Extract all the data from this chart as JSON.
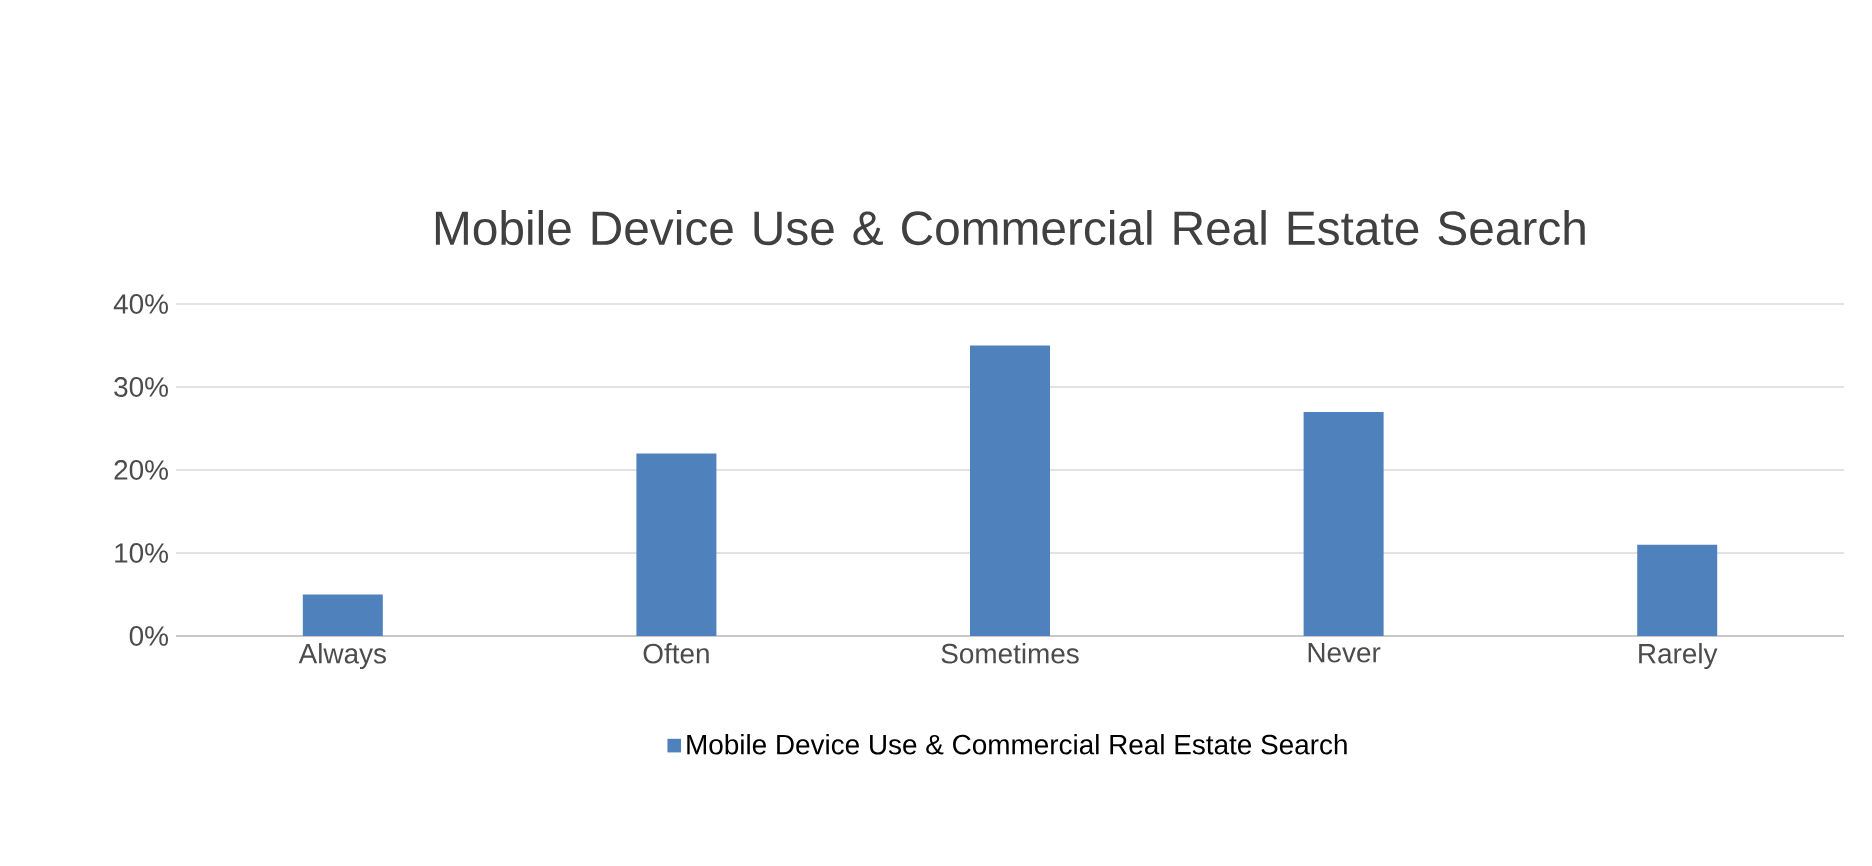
{
  "chart_data": {
    "type": "bar",
    "title": "Mobile Device Use & Commercial Real Estate Search",
    "categories": [
      "Always",
      "Often",
      "Sometimes",
      "Never",
      "Rarely"
    ],
    "series": [
      {
        "name": "Mobile Device Use & Commercial Real Estate Search",
        "color": "#4f81bd",
        "values": [
          5,
          22,
          35,
          27,
          11
        ]
      }
    ],
    "ylim": [
      0,
      40
    ],
    "yticks": [
      {
        "value": 0,
        "label": "0%"
      },
      {
        "value": 10,
        "label": "10%"
      },
      {
        "value": 20,
        "label": "20%"
      },
      {
        "value": 30,
        "label": "30%"
      },
      {
        "value": 40,
        "label": "40%"
      }
    ],
    "grid": "y",
    "legend": "bottom"
  }
}
